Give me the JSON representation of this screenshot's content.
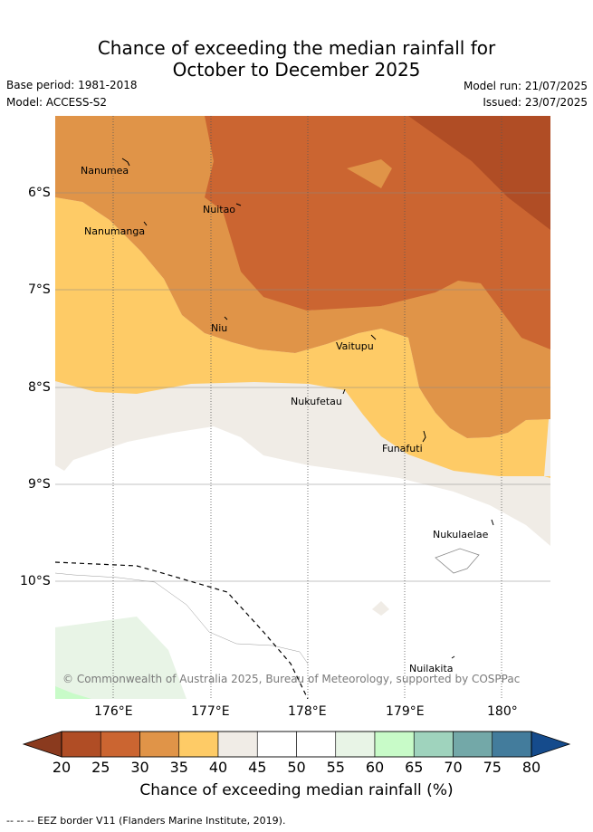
{
  "title": {
    "line1": "Chance of exceeding the median rainfall for",
    "line2": "October to December 2025"
  },
  "meta": {
    "base_period": "Base period: 1981-2018",
    "model": "Model: ACCESS-S2",
    "model_run": "Model run: 21/07/2025",
    "issued": "Issued: 23/07/2025"
  },
  "map": {
    "lat_ticks": [
      "6°S",
      "7°S",
      "8°S",
      "9°S",
      "10°S"
    ],
    "lon_ticks": [
      "176°E",
      "177°E",
      "178°E",
      "179°E",
      "180°"
    ],
    "places": [
      "Nanumea",
      "Nuitao",
      "Nanumanga",
      "Niu",
      "Vaitupu",
      "Nukufetau",
      "Funafuti",
      "Nukulaelae",
      "Nuilakita"
    ],
    "copyright": "© Commonwealth of Australia 2025, Bureau of Meteorology, supported by COSPPac",
    "colors": {
      "p20_25": "#b04d25",
      "p25_30": "#cb6531",
      "p30_35": "#e09448",
      "p35_40": "#fecb66",
      "p40_45": "#f0ece6",
      "p45_55": "#ffffff",
      "p55_60": "#e8f4e6",
      "p60_65": "#c8fbc8"
    }
  },
  "colorbar": {
    "ticks": [
      "20",
      "25",
      "30",
      "35",
      "40",
      "45",
      "50",
      "55",
      "60",
      "65",
      "70",
      "75",
      "80"
    ],
    "colors": [
      "#b04d25",
      "#cb6531",
      "#e09448",
      "#fecb66",
      "#f0ece6",
      "#ffffff",
      "#ffffff",
      "#e8f4e6",
      "#c8fbc8",
      "#9fd3bd",
      "#73a8a8",
      "#437c9c",
      "#154b8c"
    ],
    "under_color": "#8a3a1e",
    "over_color": "#154b8c",
    "label": "Chance of exceeding median rainfall (%)"
  },
  "legend": {
    "eez": "--  --  -- EEZ border V11 (Flanders Marine Institute, 2019)."
  }
}
